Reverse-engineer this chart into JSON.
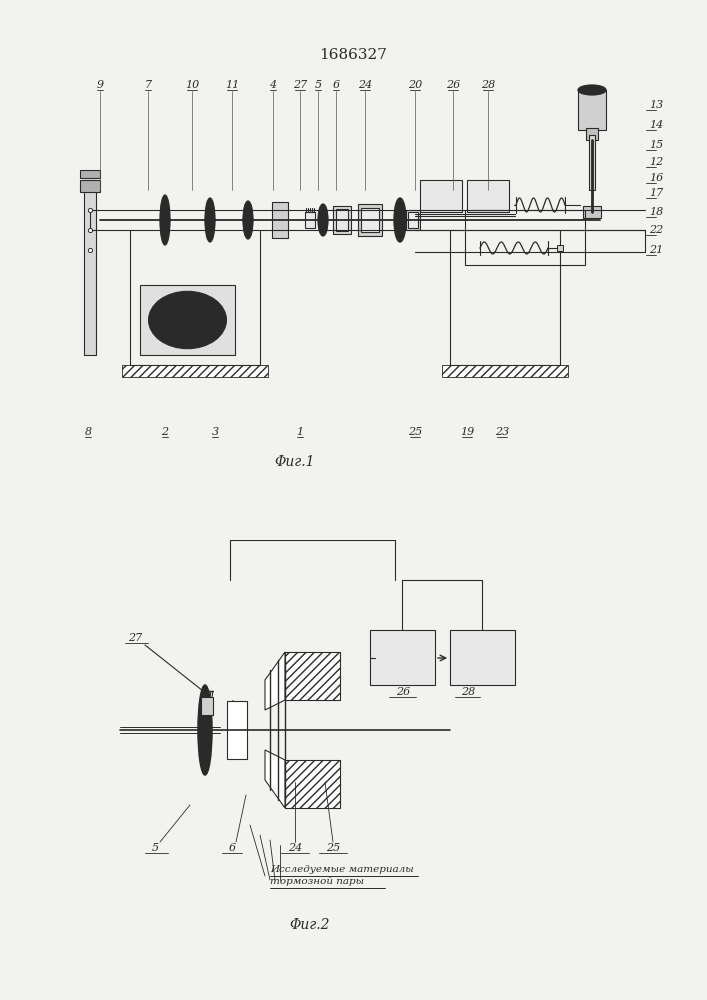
{
  "title": "1686327",
  "fig1_caption": "Φиг.1",
  "fig2_caption": "Φиг.2",
  "fig2_label_line1": "Исследуемые материалы",
  "fig2_label_line2": "тормозной пары",
  "line_color": "#2a2a2a",
  "bg_color": "#f2f2ee"
}
